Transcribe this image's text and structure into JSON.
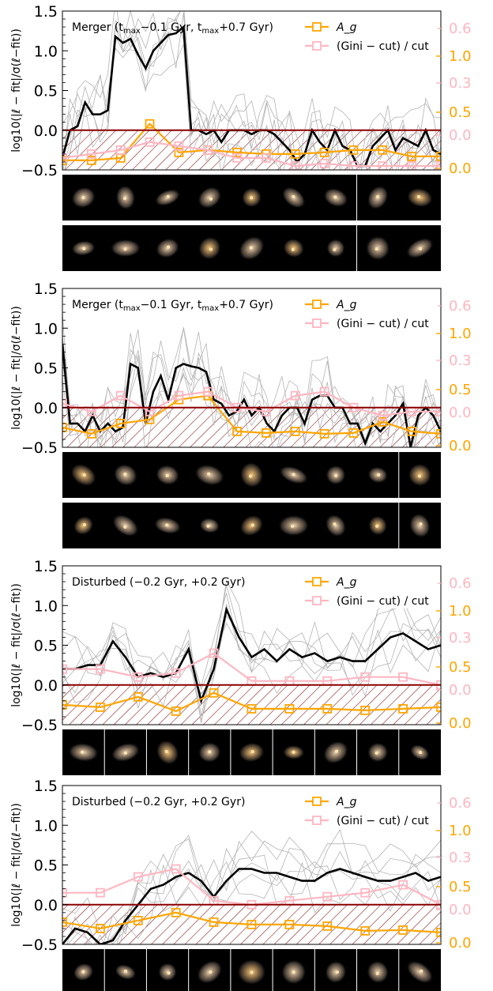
{
  "figure": {
    "colors": {
      "black_line": "#000000",
      "gray_lines": "#b3b3b3",
      "ag_line": "#ffa500",
      "gini_line": "#ffb6c1",
      "zero_line": "#8b0000",
      "hatch": "#8b2020",
      "ag_ticks": "#ffa500",
      "gini_ticks": "#ffb6c1"
    }
  },
  "chart_data": [
    {
      "type": "line",
      "title": "Merger ($t_{max}$−0.1 Gyr, $t_{max}$+0.7 Gyr)",
      "title_text": "Merger (t",
      "title_sub1": "max",
      "title_mid": "−0.1 Gyr, t",
      "title_sub2": "max",
      "title_end": "+0.7 Gyr)",
      "ylabel": "log10(|ℓ − fit|/σ(ℓ−fit))",
      "ylim": [
        -0.5,
        1.5
      ],
      "yticks": [
        "−0.5",
        "0.0",
        "0.5",
        "1.0",
        "1.5"
      ],
      "right_ticks_ag": [
        "0.0",
        "0.5",
        "1.0"
      ],
      "right_ticks_gini": [
        "0.0",
        "0.3",
        "0.6"
      ],
      "legend": [
        "A_g",
        "(Gini − cut) / cut"
      ],
      "legend_position": "top-right",
      "series": [
        {
          "name": "black",
          "values": [
            -0.35,
            0.0,
            0.05,
            0.35,
            0.2,
            0.2,
            0.25,
            1.18,
            1.1,
            1.15,
            0.95,
            0.78,
            1.0,
            1.1,
            1.2,
            1.22,
            1.3,
            0.0,
            0.0,
            -0.05,
            0.0,
            -0.15,
            0.0,
            0.0,
            0.0,
            -0.05,
            0.0,
            0.0,
            -0.05,
            -0.15,
            -0.25,
            -0.4,
            -0.3,
            0.0,
            -0.15,
            -0.25,
            0.0,
            -0.2,
            -0.25,
            -0.45,
            -0.45,
            -0.2,
            -0.1,
            0.0,
            -0.25,
            -0.1,
            -0.15,
            -0.2,
            0.0,
            -0.25,
            -0.3
          ]
        },
        {
          "name": "A_g",
          "x": [
            0,
            2,
            4,
            6,
            8,
            10,
            12,
            14,
            16,
            18,
            20,
            22,
            24,
            26
          ],
          "values": [
            -0.38,
            -0.38,
            -0.35,
            0.08,
            -0.28,
            -0.25,
            -0.28,
            -0.3,
            -0.3,
            -0.28,
            -0.25,
            -0.25,
            -0.33,
            -0.33
          ]
        },
        {
          "name": "Gini",
          "x": [
            0,
            2,
            4,
            6,
            8,
            10,
            12,
            14,
            16,
            18,
            20,
            22,
            24,
            26
          ],
          "values": [
            -0.35,
            -0.3,
            -0.25,
            -0.15,
            -0.2,
            -0.25,
            -0.35,
            -0.35,
            -0.45,
            -0.42,
            -0.45,
            -0.45,
            -0.45,
            -0.45
          ]
        }
      ],
      "thumb_rows": 2,
      "thumb_count": 9,
      "thumb_divider": 7
    },
    {
      "type": "line",
      "title_text": "Merger (t",
      "title_sub1": "max",
      "title_mid": "−0.1 Gyr, t",
      "title_sub2": "max",
      "title_end": "+0.7 Gyr)",
      "ylabel": "log10(|ℓ − fit|/σ(ℓ−fit))",
      "ylim": [
        -0.5,
        1.5
      ],
      "yticks": [
        "−0.5",
        "0.0",
        "0.5",
        "1.0",
        "1.5"
      ],
      "right_ticks_ag": [
        "0.0",
        "0.5",
        "1.0"
      ],
      "right_ticks_gini": [
        "0.0",
        "0.3",
        "0.6"
      ],
      "legend": [
        "A_g",
        "(Gini − cut) / cut"
      ],
      "legend_position": "top-right",
      "series": [
        {
          "name": "black",
          "values": [
            0.8,
            -0.2,
            -0.2,
            -0.3,
            -0.1,
            -0.3,
            -0.2,
            -0.3,
            -0.25,
            0.55,
            0.5,
            -0.2,
            0.2,
            0.4,
            0.1,
            0.5,
            0.55,
            0.52,
            0.5,
            0.45,
            0.1,
            0.05,
            -0.1,
            -0.05,
            0.1,
            -0.1,
            0.0,
            -0.2,
            -0.3,
            -0.1,
            0.0,
            0.0,
            -0.2,
            0.1,
            0.15,
            0.15,
            0.0,
            0.0,
            -0.2,
            -0.2,
            -0.45,
            -0.2,
            -0.3,
            -0.2,
            -0.1,
            0.05,
            -0.5,
            -0.1,
            0.0,
            -0.1,
            -0.3
          ]
        },
        {
          "name": "A_g",
          "x": [
            0,
            2,
            4,
            6,
            8,
            10,
            12,
            14,
            16,
            18,
            20,
            22,
            24,
            26
          ],
          "values": [
            -0.25,
            -0.33,
            -0.2,
            -0.15,
            0.1,
            0.15,
            -0.3,
            -0.32,
            -0.3,
            -0.33,
            -0.32,
            -0.18,
            -0.3,
            -0.33
          ]
        },
        {
          "name": "Gini",
          "x": [
            0,
            2,
            4,
            6,
            8,
            10,
            12,
            14,
            16,
            18,
            20,
            22,
            24,
            26
          ],
          "values": [
            0.05,
            -0.05,
            0.15,
            -0.05,
            0.15,
            0.2,
            0.0,
            -0.05,
            0.15,
            0.2,
            0.0,
            -0.1,
            -0.05,
            -0.05
          ]
        }
      ],
      "thumb_rows": 2,
      "thumb_count": 9,
      "thumb_divider": 8
    },
    {
      "type": "line",
      "title_text": "Disturbed (−0.2 Gyr, +0.2 Gyr)",
      "ylabel": "log10(|ℓ − fit|/σ(ℓ−fit))",
      "ylim": [
        -0.5,
        1.5
      ],
      "yticks": [
        "−0.5",
        "0.0",
        "0.5",
        "1.0",
        "1.5"
      ],
      "right_ticks_ag": [
        "0.0",
        "0.5",
        "1.0"
      ],
      "right_ticks_gini": [
        "0.0",
        "0.3",
        "0.6"
      ],
      "legend": [
        "A_g",
        "(Gini − cut) / cut"
      ],
      "legend_position": "top-right",
      "series": [
        {
          "name": "black",
          "values": [
            0.2,
            0.2,
            0.25,
            0.25,
            0.55,
            0.35,
            0.1,
            0.15,
            0.1,
            0.15,
            0.45,
            -0.2,
            0.2,
            0.95,
            0.6,
            0.35,
            0.45,
            0.3,
            0.45,
            0.35,
            0.4,
            0.3,
            0.35,
            0.3,
            0.3,
            0.45,
            0.6,
            0.65,
            0.55,
            0.45,
            0.5
          ]
        },
        {
          "name": "A_g",
          "x": [
            0,
            3,
            6,
            9,
            12,
            15,
            18,
            21,
            24,
            27,
            30
          ],
          "values": [
            -0.25,
            -0.28,
            -0.15,
            -0.33,
            -0.1,
            -0.3,
            -0.3,
            -0.3,
            -0.32,
            -0.3,
            -0.28
          ]
        },
        {
          "name": "Gini",
          "x": [
            0,
            3,
            6,
            9,
            12,
            15,
            18,
            21,
            24,
            27,
            30
          ],
          "values": [
            0.2,
            0.2,
            0.1,
            0.15,
            0.4,
            0.05,
            0.05,
            0.05,
            0.1,
            0.1,
            0.0
          ]
        }
      ],
      "thumb_rows": 1,
      "thumb_count": 9,
      "thumb_divider": -1
    },
    {
      "type": "line",
      "title_text": "Disturbed (−0.2 Gyr, +0.2 Gyr)",
      "ylabel": "log10(|ℓ − fit|/σ(ℓ−fit))",
      "ylim": [
        -0.5,
        1.5
      ],
      "yticks": [
        "−0.5",
        "0.0",
        "0.5",
        "1.0",
        "1.5"
      ],
      "right_ticks_ag": [
        "0.0",
        "0.5",
        "1.0"
      ],
      "right_ticks_gini": [
        "0.0",
        "0.3",
        "0.6"
      ],
      "legend": [
        "A_g",
        "(Gini − cut) / cut"
      ],
      "legend_position": "top-right",
      "series": [
        {
          "name": "black",
          "values": [
            -0.5,
            -0.3,
            -0.35,
            -0.5,
            -0.45,
            -0.2,
            0.0,
            0.2,
            0.25,
            0.35,
            0.4,
            0.3,
            0.1,
            0.3,
            0.45,
            0.45,
            0.4,
            0.4,
            0.35,
            0.3,
            0.3,
            0.4,
            0.45,
            0.4,
            0.35,
            0.3,
            0.3,
            0.35,
            0.4,
            0.3,
            0.35
          ]
        },
        {
          "name": "A_g",
          "x": [
            0,
            3,
            6,
            9,
            12,
            15,
            18,
            21,
            24,
            27,
            30
          ],
          "values": [
            -0.22,
            -0.3,
            -0.2,
            -0.1,
            -0.22,
            -0.25,
            -0.25,
            -0.27,
            -0.33,
            -0.32,
            -0.35
          ]
        },
        {
          "name": "Gini",
          "x": [
            0,
            3,
            6,
            9,
            12,
            15,
            18,
            21,
            24,
            27,
            30
          ],
          "values": [
            0.15,
            0.15,
            0.35,
            0.45,
            0.05,
            0.0,
            0.05,
            0.1,
            0.15,
            0.25,
            0.0
          ]
        }
      ],
      "thumb_rows": 1,
      "thumb_count": 9,
      "thumb_divider": -1
    }
  ]
}
